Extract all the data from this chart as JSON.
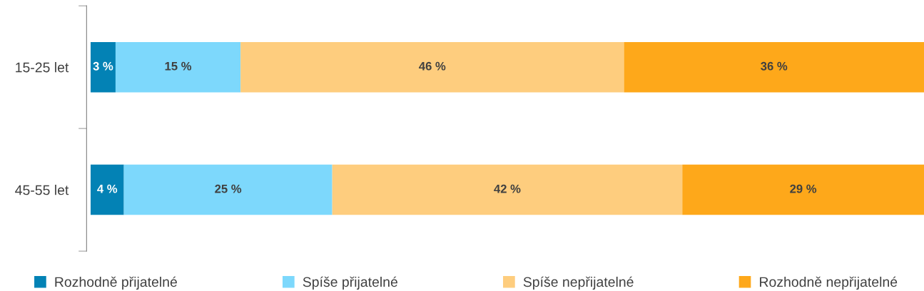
{
  "chart_data": {
    "type": "bar",
    "orientation": "horizontal",
    "stacked": true,
    "categories": [
      "15-25 let",
      "45-55 let"
    ],
    "xlim": [
      0,
      100
    ],
    "tick_labels": "y",
    "grid": false,
    "legend": "bottom",
    "series": [
      {
        "name": "Rozhodně přijatelné",
        "color": "#0382b5",
        "values": [
          3,
          4
        ],
        "value_labels": [
          "3 %",
          "4 %"
        ]
      },
      {
        "name": "Spíše přijatelné",
        "color": "#7dd8fc",
        "values": [
          15,
          25
        ],
        "value_labels": [
          "15 %",
          "25 %"
        ]
      },
      {
        "name": "Spíše nepřijatelné",
        "color": "#fecd7e",
        "values": [
          46,
          42
        ],
        "value_labels": [
          "46 %",
          "42 %"
        ]
      },
      {
        "name": "Rozhodně nepřijatelné",
        "color": "#fea81a",
        "values": [
          36,
          29
        ],
        "value_labels": [
          "36 %",
          "29 %"
        ]
      }
    ]
  }
}
